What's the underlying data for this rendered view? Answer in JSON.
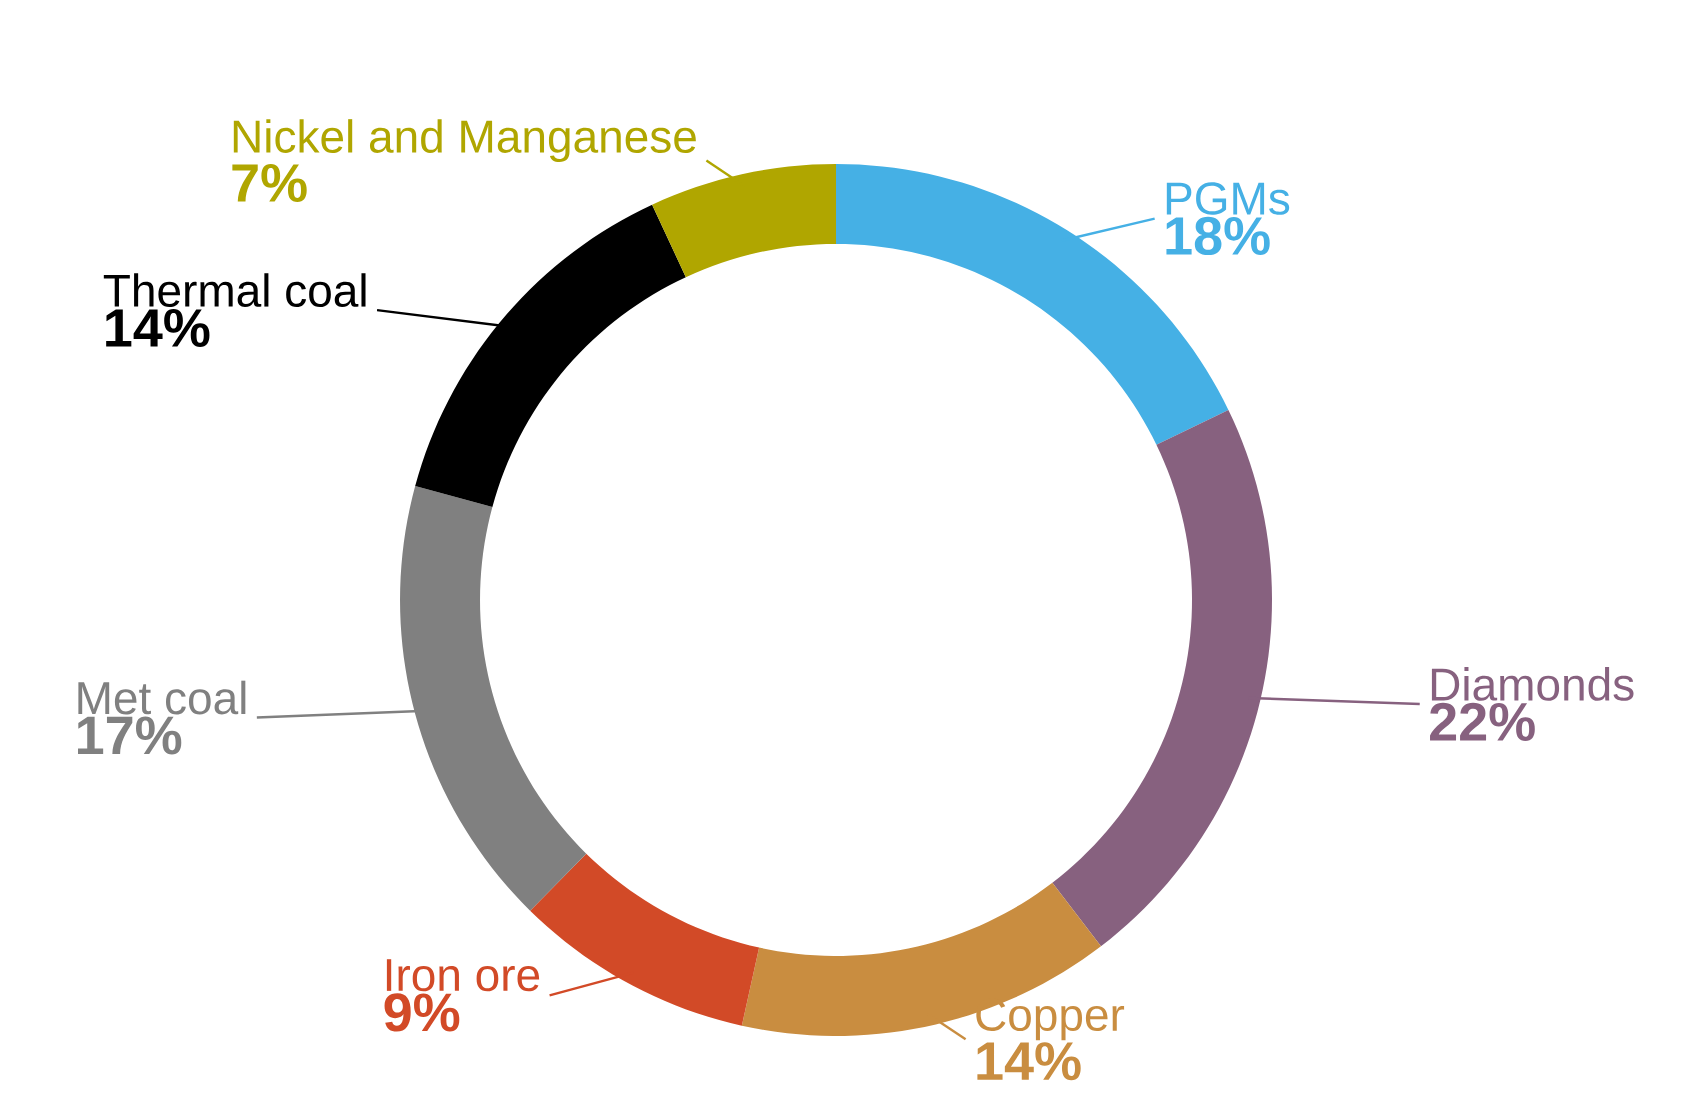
{
  "chart_data": {
    "type": "donut",
    "categories": [
      "PGMs",
      "Diamonds",
      "Copper",
      "Iron ore",
      "Met coal",
      "Thermal coal",
      "Nickel and Manganese"
    ],
    "values": [
      18,
      22,
      14,
      9,
      17,
      14,
      7
    ],
    "value_labels": [
      "18%",
      "22%",
      "14%",
      "9%",
      "17%",
      "14%",
      "7%"
    ],
    "colors": [
      "#45b0e5",
      "#87617f",
      "#c98d40",
      "#d24a27",
      "#808080",
      "#000000",
      "#b0a600"
    ]
  }
}
